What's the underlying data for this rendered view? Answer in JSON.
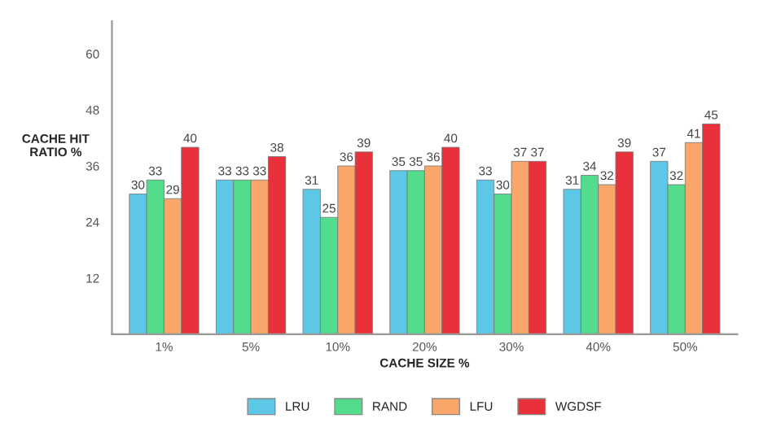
{
  "chart_data": {
    "type": "bar",
    "xlabel": "CACHE SIZE %",
    "ylabel": "CACHE HIT\nRATIO %",
    "categories": [
      "1%",
      "5%",
      "10%",
      "20%",
      "30%",
      "40%",
      "50%"
    ],
    "series": [
      {
        "name": "LRU",
        "color": "#5cc8e6",
        "values": [
          30,
          33,
          31,
          35,
          33,
          31,
          37
        ]
      },
      {
        "name": "RAND",
        "color": "#52dc8c",
        "values": [
          33,
          33,
          25,
          35,
          30,
          34,
          32
        ]
      },
      {
        "name": "LFU",
        "color": "#f8a66a",
        "values": [
          29,
          33,
          36,
          36,
          37,
          32,
          41
        ]
      },
      {
        "name": "WGDSF",
        "color": "#e8313b",
        "values": [
          40,
          38,
          39,
          40,
          37,
          39,
          45
        ]
      }
    ],
    "ylim": [
      0,
      67
    ],
    "yticks": [
      12,
      24,
      36,
      48,
      60
    ],
    "data_labels": true,
    "legend": "bottom",
    "grid": false
  }
}
